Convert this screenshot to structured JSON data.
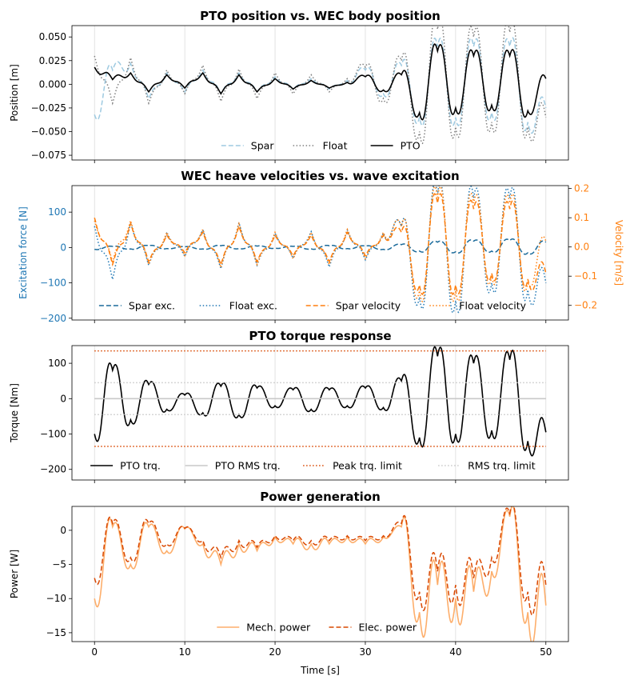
{
  "chart_data": [
    {
      "type": "line",
      "title": "PTO position vs. WEC body position",
      "ylabel": "Position [m]",
      "xlabel": "",
      "xlim": [
        -2.5,
        52.5
      ],
      "ylim": [
        -0.08,
        0.062
      ],
      "xticks": [
        0,
        10,
        20,
        30,
        40,
        50
      ],
      "yticks": [
        -0.075,
        -0.05,
        -0.025,
        0.0,
        0.025,
        0.05
      ],
      "ytick_labels": [
        "−0.075",
        "−0.050",
        "−0.025",
        "0.000",
        "0.025",
        "0.050"
      ],
      "grid": "x",
      "legend": {
        "placement": "lower-center",
        "entries": [
          "Spar",
          "Float",
          "PTO"
        ]
      },
      "series": [
        {
          "name": "Spar",
          "color": "#9ecae1",
          "style": "dashed",
          "x": [
            0,
            2,
            4,
            6,
            8,
            10,
            12,
            14,
            16,
            18,
            20,
            22,
            24,
            26,
            28,
            30,
            32,
            34,
            36,
            38,
            40,
            42,
            44,
            46,
            48,
            50
          ],
          "y": [
            -0.032,
            0.015,
            0.022,
            -0.015,
            0.012,
            -0.008,
            0.015,
            -0.01,
            0.012,
            -0.008,
            0.008,
            -0.005,
            0.006,
            -0.005,
            0.004,
            0.015,
            -0.01,
            0.02,
            -0.035,
            0.04,
            -0.035,
            0.04,
            -0.03,
            0.04,
            -0.04,
            -0.025
          ]
        },
        {
          "name": "Float",
          "color": "#808080",
          "style": "dotted",
          "x": [
            0,
            2,
            4,
            6,
            8,
            10,
            12,
            14,
            16,
            18,
            20,
            22,
            24,
            26,
            28,
            30,
            32,
            34,
            36,
            38,
            40,
            42,
            44,
            46,
            48,
            50
          ],
          "y": [
            0.03,
            -0.02,
            0.028,
            -0.02,
            0.015,
            -0.01,
            0.02,
            -0.018,
            0.016,
            -0.015,
            0.012,
            -0.01,
            0.01,
            -0.008,
            0.006,
            0.018,
            -0.015,
            0.025,
            -0.05,
            0.058,
            -0.045,
            0.05,
            -0.04,
            0.055,
            -0.045,
            -0.035
          ]
        },
        {
          "name": "PTO",
          "color": "#000000",
          "style": "solid",
          "x": [
            0,
            2,
            4,
            6,
            8,
            10,
            12,
            14,
            16,
            18,
            20,
            22,
            24,
            26,
            28,
            30,
            32,
            34,
            36,
            38,
            40,
            42,
            44,
            46,
            48,
            50
          ],
          "y": [
            0.018,
            0.005,
            0.012,
            -0.008,
            0.01,
            -0.004,
            0.012,
            -0.01,
            0.01,
            -0.008,
            0.006,
            -0.005,
            0.004,
            -0.004,
            0.002,
            0.008,
            -0.006,
            0.01,
            -0.03,
            0.035,
            -0.025,
            0.03,
            -0.022,
            0.03,
            -0.028,
            0.006
          ]
        }
      ]
    },
    {
      "type": "line",
      "title": "WEC heave velocities vs. wave excitation",
      "ylabel": "Excitation force [N]",
      "ylabel_right": "Velocity [m/s]",
      "xlabel": "",
      "xlim": [
        -2.5,
        52.5
      ],
      "ylim": [
        -205,
        175
      ],
      "ylim_right": [
        -0.25,
        0.21
      ],
      "xticks": [
        0,
        10,
        20,
        30,
        40,
        50
      ],
      "yticks": [
        -200,
        -100,
        0,
        100
      ],
      "ytick_labels": [
        "−200",
        "−100",
        "0",
        "100"
      ],
      "yticks_right": [
        -0.2,
        -0.1,
        0.0,
        0.1,
        0.2
      ],
      "ytick_labels_right": [
        "−0.2",
        "−0.1",
        "0.0",
        "0.1",
        "0.2"
      ],
      "left_axis_color": "#1f77b4",
      "right_axis_color": "#ff7f0e",
      "grid": "x",
      "legend": {
        "placement": "lower-center",
        "entries": [
          "Spar exc.",
          "Float exc.",
          "Spar velocity",
          "Float velocity"
        ]
      },
      "series": [
        {
          "name": "Spar exc.",
          "axis": "left",
          "color": "#1a6a9a",
          "style": "dashed",
          "x": [
            0,
            2,
            4,
            6,
            8,
            10,
            12,
            14,
            16,
            18,
            20,
            22,
            24,
            26,
            28,
            30,
            32,
            34,
            36,
            38,
            40,
            42,
            44,
            46,
            48,
            50
          ],
          "y": [
            -5,
            3,
            -4,
            5,
            -3,
            2,
            -4,
            5,
            -3,
            4,
            -2,
            3,
            -4,
            5,
            -3,
            4,
            -5,
            8,
            -10,
            15,
            -12,
            18,
            -10,
            20,
            -15,
            15
          ]
        },
        {
          "name": "Float exc.",
          "axis": "left",
          "color": "#1f77b4",
          "style": "dotted",
          "x": [
            0,
            2,
            4,
            6,
            8,
            10,
            12,
            14,
            16,
            18,
            20,
            22,
            24,
            26,
            28,
            30,
            32,
            34,
            36,
            38,
            40,
            42,
            44,
            46,
            48,
            50
          ],
          "y": [
            60,
            -90,
            70,
            -50,
            40,
            -25,
            50,
            -60,
            70,
            -50,
            40,
            -30,
            45,
            -55,
            50,
            -35,
            40,
            60,
            -140,
            150,
            -150,
            140,
            -100,
            140,
            -120,
            -100
          ]
        },
        {
          "name": "Spar velocity",
          "axis": "right",
          "color": "#ff7f0e",
          "style": "dashed",
          "x": [
            0,
            2,
            4,
            6,
            8,
            10,
            12,
            14,
            16,
            18,
            20,
            22,
            24,
            26,
            28,
            30,
            32,
            34,
            36,
            38,
            40,
            42,
            44,
            46,
            48,
            50
          ],
          "y": [
            0.1,
            -0.06,
            0.08,
            -0.05,
            0.04,
            -0.02,
            0.05,
            -0.06,
            0.07,
            -0.05,
            0.04,
            -0.03,
            0.04,
            -0.05,
            0.05,
            -0.03,
            0.04,
            0.05,
            -0.13,
            0.15,
            -0.13,
            0.13,
            -0.09,
            0.13,
            -0.11,
            -0.09
          ]
        },
        {
          "name": "Float velocity",
          "axis": "right",
          "color": "#ff7f0e",
          "style": "dotted",
          "x": [
            0,
            2,
            4,
            6,
            8,
            10,
            12,
            14,
            16,
            18,
            20,
            22,
            24,
            26,
            28,
            30,
            32,
            34,
            36,
            38,
            40,
            42,
            44,
            46,
            48,
            50
          ],
          "y": [
            0.09,
            -0.05,
            0.09,
            -0.06,
            0.05,
            -0.03,
            0.06,
            -0.07,
            0.08,
            -0.06,
            0.05,
            -0.04,
            0.05,
            -0.06,
            0.06,
            -0.04,
            0.05,
            0.07,
            -0.15,
            0.17,
            -0.15,
            0.15,
            -0.1,
            0.15,
            -0.12,
            0.02
          ]
        }
      ]
    },
    {
      "type": "line",
      "title": "PTO torque response",
      "ylabel": "Torque [Nm]",
      "xlabel": "",
      "xlim": [
        -2.5,
        52.5
      ],
      "ylim": [
        -230,
        150
      ],
      "xticks": [
        0,
        10,
        20,
        30,
        40,
        50
      ],
      "yticks": [
        -200,
        -100,
        0,
        100
      ],
      "ytick_labels": [
        "−200",
        "−100",
        "0",
        "100"
      ],
      "grid": "x",
      "legend": {
        "placement": "lower-center",
        "entries": [
          "PTO trq.",
          "PTO RMS trq.",
          "Peak trq. limit",
          "RMS trq. limit"
        ]
      },
      "series": [
        {
          "name": "PTO trq.",
          "color": "#000000",
          "style": "solid",
          "x": [
            0,
            2,
            4,
            6,
            8,
            10,
            12,
            14,
            16,
            18,
            20,
            22,
            24,
            26,
            28,
            30,
            32,
            34,
            36,
            38,
            40,
            42,
            44,
            46,
            48,
            50
          ],
          "y": [
            -100,
            80,
            -60,
            40,
            -30,
            10,
            -40,
            35,
            -45,
            30,
            -20,
            25,
            -30,
            25,
            -20,
            30,
            -25,
            50,
            -110,
            120,
            -100,
            100,
            -90,
            110,
            -120,
            -95
          ]
        },
        {
          "name": "PTO RMS trq.",
          "color": "#c8c8c8",
          "style": "solid",
          "x": [
            0,
            50
          ],
          "y": [
            0,
            0
          ]
        },
        {
          "name": "Peak trq. limit",
          "color": "#d94801",
          "style": "dotted",
          "x": [
            0,
            50
          ],
          "y": [
            135,
            135
          ],
          "mirror": true
        },
        {
          "name": "RMS trq. limit",
          "color": "#c8c8c8",
          "style": "dotted",
          "x": [
            0,
            50
          ],
          "y": [
            45,
            45
          ],
          "mirror": true
        }
      ]
    },
    {
      "type": "line",
      "title": "Power generation",
      "ylabel": "Power [W]",
      "xlabel": "Time [s]",
      "xlim": [
        -2.5,
        52.5
      ],
      "ylim": [
        -16.3,
        3.5
      ],
      "xticks": [
        0,
        10,
        20,
        30,
        40,
        50
      ],
      "xtick_labels": [
        "0",
        "10",
        "20",
        "30",
        "40",
        "50"
      ],
      "yticks": [
        -15,
        -10,
        -5,
        0
      ],
      "ytick_labels": [
        "−15",
        "−10",
        "−5",
        "0"
      ],
      "grid": "x",
      "legend": {
        "placement": "lower-center",
        "entries": [
          "Mech. power",
          "Elec. power"
        ]
      },
      "series": [
        {
          "name": "Mech. power",
          "color": "#fdae6b",
          "style": "solid",
          "x": [
            0,
            2,
            4,
            6,
            8,
            10,
            12,
            14,
            16,
            18,
            20,
            22,
            24,
            26,
            28,
            30,
            32,
            34,
            36,
            38,
            40,
            42,
            44,
            46,
            48,
            50
          ],
          "y": [
            -10,
            0.5,
            -5,
            0.5,
            -3,
            0.2,
            -2,
            -5,
            -2,
            -3,
            -1,
            -2,
            -2,
            -2,
            -1,
            -2,
            -1,
            0.5,
            -12,
            -8,
            -10,
            -9,
            -6,
            2,
            -12,
            -11
          ]
        },
        {
          "name": "Elec. power",
          "color": "#d94801",
          "style": "dashed",
          "x": [
            0,
            2,
            4,
            6,
            8,
            10,
            12,
            14,
            16,
            18,
            20,
            22,
            24,
            26,
            28,
            30,
            32,
            34,
            36,
            38,
            40,
            42,
            44,
            46,
            48,
            50
          ],
          "y": [
            -7,
            1,
            -4,
            1,
            -2,
            0.3,
            -1.5,
            -4,
            -1.5,
            -2.5,
            -0.8,
            -1.5,
            -1.5,
            -1.5,
            -0.8,
            -1.5,
            -0.8,
            1,
            -9,
            -6,
            -8,
            -7,
            -4,
            2.5,
            -9,
            -8
          ]
        }
      ]
    }
  ]
}
